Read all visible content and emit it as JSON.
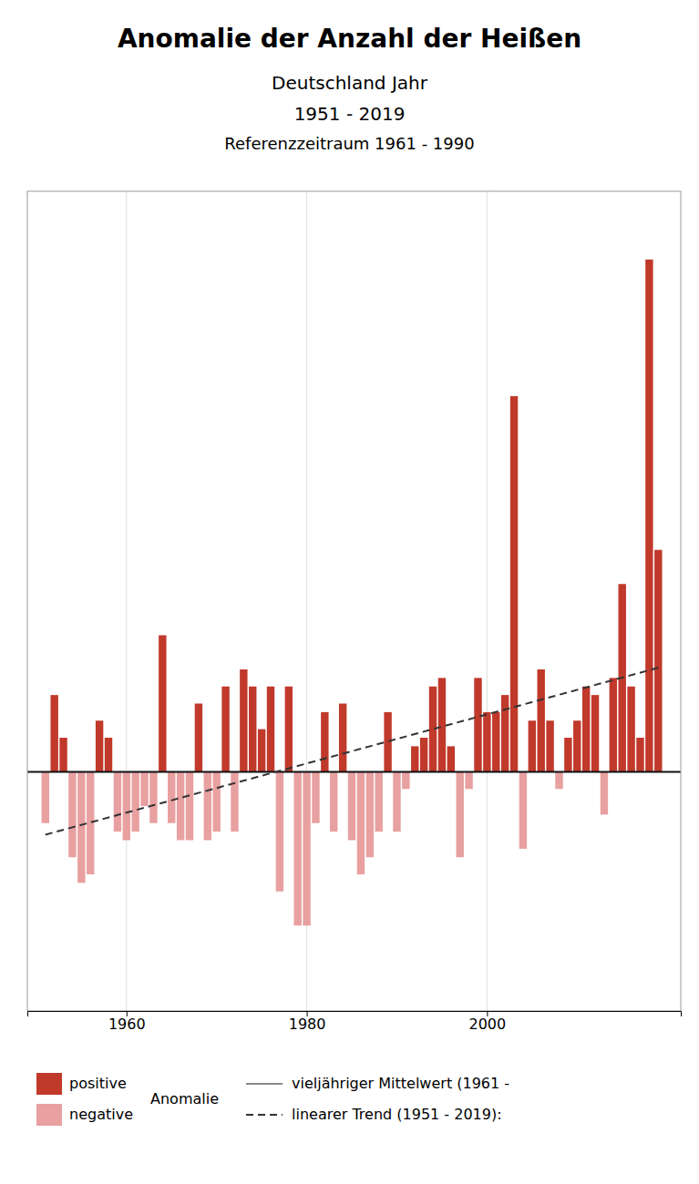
{
  "chart_data": {
    "type": "bar",
    "title": "Anomalie der Anzahl der Heißen",
    "subtitle": [
      "Deutschland Jahr",
      "1951 - 2019",
      "Referenzzeitraum 1961 - 1990"
    ],
    "x": [
      1951,
      1952,
      1953,
      1954,
      1955,
      1956,
      1957,
      1958,
      1959,
      1960,
      1961,
      1962,
      1963,
      1964,
      1965,
      1966,
      1967,
      1968,
      1969,
      1970,
      1971,
      1972,
      1973,
      1974,
      1975,
      1976,
      1977,
      1978,
      1979,
      1980,
      1981,
      1982,
      1983,
      1984,
      1985,
      1986,
      1987,
      1988,
      1989,
      1990,
      1991,
      1992,
      1993,
      1994,
      1995,
      1996,
      1997,
      1998,
      1999,
      2000,
      2001,
      2002,
      2003,
      2004,
      2005,
      2006,
      2007,
      2008,
      2009,
      2010,
      2011,
      2012,
      2013,
      2014,
      2015,
      2016,
      2017,
      2018,
      2019
    ],
    "series": [
      {
        "name": "Anomalie",
        "type": "bar",
        "values": [
          -3.0,
          4.5,
          2.0,
          -5.0,
          -6.5,
          -6.0,
          3.0,
          2.0,
          -3.5,
          -4.0,
          -3.5,
          -2.0,
          -3.0,
          8.0,
          -3.0,
          -4.0,
          -4.0,
          4.0,
          -4.0,
          -3.5,
          5.0,
          -3.5,
          6.0,
          5.0,
          2.5,
          5.0,
          -7.0,
          5.0,
          -9.0,
          -9.0,
          -3.0,
          3.5,
          -3.5,
          4.0,
          -4.0,
          -6.0,
          -5.0,
          -3.5,
          3.5,
          -3.5,
          -1.0,
          1.5,
          2.0,
          5.0,
          5.5,
          1.5,
          -5.0,
          -1.0,
          5.5,
          3.5,
          3.5,
          4.5,
          22.0,
          -4.5,
          3.0,
          6.0,
          3.0,
          -1.0,
          2.0,
          3.0,
          5.0,
          4.5,
          -2.5,
          5.5,
          11.0,
          5.0,
          2.0,
          30.0,
          13.0
        ],
        "colors": [
          "#e8a0a0",
          "#c0392b",
          "#c0392b",
          "#e8a0a0",
          "#e8a0a0",
          "#e8a0a0",
          "#c0392b",
          "#c0392b",
          "#e8a0a0",
          "#e8a0a0",
          "#e8a0a0",
          "#e8a0a0",
          "#e8a0a0",
          "#c0392b",
          "#e8a0a0",
          "#e8a0a0",
          "#e8a0a0",
          "#c0392b",
          "#e8a0a0",
          "#e8a0a0",
          "#c0392b",
          "#e8a0a0",
          "#c0392b",
          "#c0392b",
          "#c0392b",
          "#c0392b",
          "#e8a0a0",
          "#c0392b",
          "#e8a0a0",
          "#e8a0a0",
          "#e8a0a0",
          "#c0392b",
          "#e8a0a0",
          "#c0392b",
          "#e8a0a0",
          "#e8a0a0",
          "#e8a0a0",
          "#e8a0a0",
          "#c0392b",
          "#e8a0a0",
          "#e8a0a0",
          "#c0392b",
          "#c0392b",
          "#c0392b",
          "#c0392b",
          "#c0392b",
          "#e8a0a0",
          "#e8a0a0",
          "#c0392b",
          "#c0392b",
          "#c0392b",
          "#c0392b",
          "#c0392b",
          "#e8a0a0",
          "#c0392b",
          "#c0392b",
          "#c0392b",
          "#e8a0a0",
          "#c0392b",
          "#c0392b",
          "#c0392b",
          "#c0392b",
          "#e8a0a0",
          "#c0392b",
          "#c0392b",
          "#c0392b",
          "#c0392b",
          "#c0392b",
          "#c0392b"
        ]
      },
      {
        "name": "linearer Trend (1951 - 2019):",
        "type": "line",
        "line_style": "dashed",
        "color": "#333333",
        "x": [
          1951,
          2019
        ],
        "values": [
          -3.6774,
          6.0977
        ]
      }
    ],
    "hlines": [
      {
        "value": 0,
        "color": "#111111"
      }
    ],
    "legend_entries": [
      {
        "name": "positive",
        "color": "#c0392b",
        "marker": "square"
      },
      {
        "name": "negative",
        "color": "#e8a0a0",
        "marker": "square"
      },
      {
        "name": "vieljähriger Mittelwert (1961 -",
        "color": "#888888",
        "line_style": "solid"
      }
    ],
    "legend": "bottom",
    "xlim": [
      1949.0,
      2021.5
    ],
    "xticks": [
      1960,
      1980,
      2000
    ],
    "ylim": [
      -14,
      34
    ],
    "yticks": [],
    "grid": true,
    "tick_labels": "x"
  }
}
